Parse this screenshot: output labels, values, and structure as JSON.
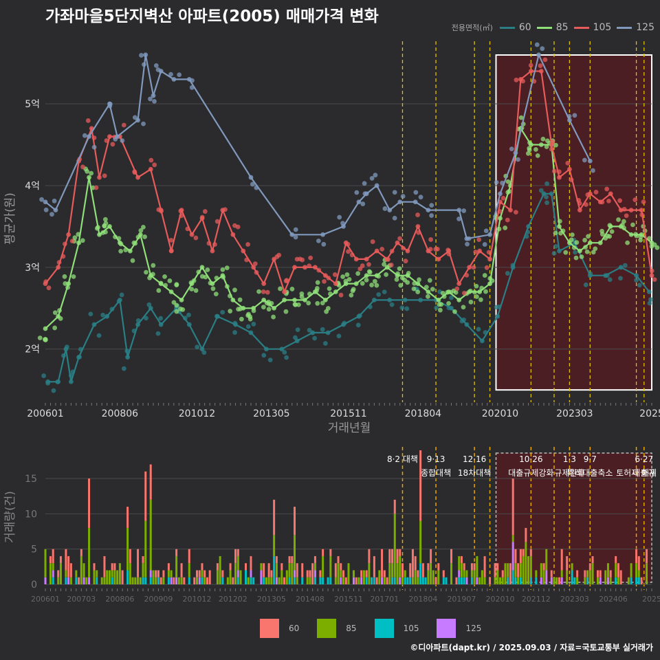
{
  "title": "가좌마을5단지벽산 아파트(2005) 매매가격 변화",
  "credit": "©디아파트(dapt.kr) / 2025.09.03 / 자료=국토교통부 실거래가",
  "legend": {
    "title": "전용면적(㎡)",
    "items": [
      {
        "label": "60",
        "color": "#2a7f86"
      },
      {
        "label": "85",
        "color": "#90e07a"
      },
      {
        "label": "105",
        "color": "#e85b5b"
      },
      {
        "label": "125",
        "color": "#8099bd"
      }
    ]
  },
  "bar_legend": {
    "items": [
      {
        "label": "60",
        "color": "#f8766d"
      },
      {
        "label": "85",
        "color": "#7cae00"
      },
      {
        "label": "105",
        "color": "#00bfc4"
      },
      {
        "label": "125",
        "color": "#c77cff"
      }
    ]
  },
  "chart_data": [
    {
      "type": "line",
      "xlabel": "거래년월",
      "ylabel": "평균가(원)",
      "x_ticks": [
        "200601",
        "200806",
        "201012",
        "201305",
        "201511",
        "201804",
        "202010",
        "202303",
        "2025"
      ],
      "y_ticks": [
        "2억",
        "3억",
        "4억",
        "5억"
      ],
      "ylim": [
        1.35,
        5.85
      ],
      "xlim": [
        "2006-01",
        "2025-09"
      ],
      "grid": true,
      "legend_position": "top-right",
      "series": [
        {
          "name": "60",
          "points": [
            [
              "2006-02",
              1.6
            ],
            [
              "2006-06",
              1.6
            ],
            [
              "2006-09",
              2.0
            ],
            [
              "2006-11",
              1.6
            ],
            [
              "2007-02",
              1.9
            ],
            [
              "2007-08",
              2.3
            ],
            [
              "2008-01",
              2.4
            ],
            [
              "2008-06",
              2.6
            ],
            [
              "2008-09",
              1.9
            ],
            [
              "2009-01",
              2.3
            ],
            [
              "2009-06",
              2.5
            ],
            [
              "2009-10",
              2.3
            ],
            [
              "2010-04",
              2.5
            ],
            [
              "2010-09",
              2.3
            ],
            [
              "2011-02",
              2.0
            ],
            [
              "2011-08",
              2.4
            ],
            [
              "2012-03",
              2.3
            ],
            [
              "2012-09",
              2.2
            ],
            [
              "2013-03",
              2.0
            ],
            [
              "2013-09",
              2.0
            ],
            [
              "2014-03",
              2.1
            ],
            [
              "2014-09",
              2.2
            ],
            [
              "2015-03",
              2.2
            ],
            [
              "2015-09",
              2.3
            ],
            [
              "2016-03",
              2.4
            ],
            [
              "2016-09",
              2.6
            ],
            [
              "2017-03",
              2.6
            ],
            [
              "2017-09",
              2.6
            ],
            [
              "2018-03",
              2.6
            ],
            [
              "2018-09",
              2.6
            ],
            [
              "2019-03",
              2.5
            ],
            [
              "2019-09",
              2.3
            ],
            [
              "2020-03",
              2.1
            ],
            [
              "2020-09",
              2.4
            ],
            [
              "2021-03",
              3.0
            ],
            [
              "2021-09",
              3.5
            ],
            [
              "2022-03",
              3.9
            ],
            [
              "2022-06",
              3.9
            ],
            [
              "2022-09",
              3.2
            ],
            [
              "2023-03",
              3.3
            ],
            [
              "2023-09",
              2.9
            ],
            [
              "2024-03",
              2.9
            ],
            [
              "2024-09",
              3.0
            ],
            [
              "2025-03",
              2.9
            ],
            [
              "2025-08",
              2.7
            ]
          ]
        },
        {
          "name": "85",
          "points": [
            [
              "2006-01",
              2.25
            ],
            [
              "2006-06",
              2.4
            ],
            [
              "2006-10",
              2.8
            ],
            [
              "2007-02",
              3.3
            ],
            [
              "2007-06",
              4.1
            ],
            [
              "2007-10",
              3.4
            ],
            [
              "2008-02",
              3.5
            ],
            [
              "2008-06",
              3.3
            ],
            [
              "2008-10",
              3.2
            ],
            [
              "2009-02",
              3.4
            ],
            [
              "2009-06",
              2.9
            ],
            [
              "2009-10",
              2.8
            ],
            [
              "2010-02",
              2.7
            ],
            [
              "2010-06",
              2.6
            ],
            [
              "2010-10",
              2.8
            ],
            [
              "2011-02",
              3.0
            ],
            [
              "2011-06",
              2.8
            ],
            [
              "2011-10",
              2.9
            ],
            [
              "2012-02",
              2.6
            ],
            [
              "2012-06",
              2.5
            ],
            [
              "2012-10",
              2.5
            ],
            [
              "2013-02",
              2.6
            ],
            [
              "2013-06",
              2.5
            ],
            [
              "2013-10",
              2.6
            ],
            [
              "2014-02",
              2.6
            ],
            [
              "2014-06",
              2.6
            ],
            [
              "2014-10",
              2.7
            ],
            [
              "2015-02",
              2.6
            ],
            [
              "2015-06",
              2.7
            ],
            [
              "2015-10",
              2.8
            ],
            [
              "2016-02",
              2.8
            ],
            [
              "2016-06",
              2.9
            ],
            [
              "2016-10",
              2.9
            ],
            [
              "2017-02",
              3.0
            ],
            [
              "2017-06",
              2.9
            ],
            [
              "2017-10",
              2.9
            ],
            [
              "2018-02",
              2.8
            ],
            [
              "2018-06",
              2.7
            ],
            [
              "2018-10",
              2.6
            ],
            [
              "2019-02",
              2.7
            ],
            [
              "2019-06",
              2.6
            ],
            [
              "2019-10",
              2.7
            ],
            [
              "2020-02",
              2.7
            ],
            [
              "2020-06",
              2.8
            ],
            [
              "2020-10",
              3.6
            ],
            [
              "2021-02",
              4.0
            ],
            [
              "2021-06",
              4.7
            ],
            [
              "2021-10",
              4.5
            ],
            [
              "2022-02",
              4.5
            ],
            [
              "2022-06",
              4.5
            ],
            [
              "2022-09",
              3.5
            ],
            [
              "2023-01",
              3.3
            ],
            [
              "2023-05",
              3.2
            ],
            [
              "2023-09",
              3.3
            ],
            [
              "2024-01",
              3.3
            ],
            [
              "2024-05",
              3.5
            ],
            [
              "2024-09",
              3.5
            ],
            [
              "2025-01",
              3.4
            ],
            [
              "2025-05",
              3.4
            ],
            [
              "2025-09",
              3.3
            ]
          ]
        },
        {
          "name": "105",
          "points": [
            [
              "2006-01",
              2.8
            ],
            [
              "2006-06",
              3.0
            ],
            [
              "2006-10",
              3.4
            ],
            [
              "2007-02",
              4.3
            ],
            [
              "2007-07",
              4.7
            ],
            [
              "2007-10",
              4.1
            ],
            [
              "2008-02",
              4.6
            ],
            [
              "2008-06",
              4.6
            ],
            [
              "2009-01",
              4.1
            ],
            [
              "2009-06",
              4.2
            ],
            [
              "2009-10",
              3.7
            ],
            [
              "2010-02",
              3.2
            ],
            [
              "2010-06",
              3.7
            ],
            [
              "2010-10",
              3.4
            ],
            [
              "2011-02",
              3.6
            ],
            [
              "2011-06",
              3.2
            ],
            [
              "2011-10",
              3.7
            ],
            [
              "2012-02",
              3.4
            ],
            [
              "2012-06",
              3.2
            ],
            [
              "2012-10",
              3.0
            ],
            [
              "2013-02",
              2.8
            ],
            [
              "2013-06",
              3.1
            ],
            [
              "2013-10",
              2.7
            ],
            [
              "2014-02",
              3.0
            ],
            [
              "2014-06",
              3.0
            ],
            [
              "2014-10",
              3.0
            ],
            [
              "2015-02",
              2.9
            ],
            [
              "2015-06",
              2.8
            ],
            [
              "2015-10",
              3.3
            ],
            [
              "2016-02",
              3.1
            ],
            [
              "2016-06",
              3.1
            ],
            [
              "2016-10",
              3.2
            ],
            [
              "2017-02",
              3.1
            ],
            [
              "2017-06",
              3.3
            ],
            [
              "2017-10",
              3.2
            ],
            [
              "2018-02",
              3.5
            ],
            [
              "2018-06",
              3.2
            ],
            [
              "2018-10",
              3.1
            ],
            [
              "2019-02",
              3.2
            ],
            [
              "2019-06",
              2.8
            ],
            [
              "2019-10",
              3.0
            ],
            [
              "2020-02",
              3.2
            ],
            [
              "2020-06",
              3.1
            ],
            [
              "2020-10",
              3.8
            ],
            [
              "2021-02",
              3.7
            ],
            [
              "2021-06",
              5.3
            ],
            [
              "2021-10",
              5.4
            ],
            [
              "2022-02",
              5.4
            ],
            [
              "2022-06",
              4.5
            ],
            [
              "2022-09",
              4.1
            ],
            [
              "2023-01",
              4.2
            ],
            [
              "2023-05",
              3.7
            ],
            [
              "2023-09",
              3.9
            ],
            [
              "2024-01",
              3.8
            ],
            [
              "2024-05",
              3.9
            ],
            [
              "2024-09",
              3.7
            ],
            [
              "2025-01",
              3.7
            ],
            [
              "2025-05",
              3.7
            ],
            [
              "2025-09",
              2.9
            ]
          ]
        },
        {
          "name": "125",
          "points": [
            [
              "2006-01",
              3.8
            ],
            [
              "2006-05",
              3.7
            ],
            [
              "2007-06",
              4.6
            ],
            [
              "2008-02",
              5.0
            ],
            [
              "2008-05",
              4.6
            ],
            [
              "2009-01",
              4.8
            ],
            [
              "2009-04",
              5.6
            ],
            [
              "2009-07",
              5.1
            ],
            [
              "2009-10",
              5.4
            ],
            [
              "2010-03",
              5.3
            ],
            [
              "2010-09",
              5.3
            ],
            [
              "2012-09",
              4.1
            ],
            [
              "2014-01",
              3.4
            ],
            [
              "2015-01",
              3.4
            ],
            [
              "2015-09",
              3.5
            ],
            [
              "2016-03",
              3.8
            ],
            [
              "2016-06",
              3.9
            ],
            [
              "2016-10",
              4.0
            ],
            [
              "2017-03",
              3.7
            ],
            [
              "2017-07",
              3.8
            ],
            [
              "2018-01",
              3.8
            ],
            [
              "2018-06",
              3.7
            ],
            [
              "2019-06",
              3.7
            ],
            [
              "2019-09",
              3.35
            ],
            [
              "2020-06",
              3.4
            ],
            [
              "2020-10",
              3.9
            ],
            [
              "2021-04",
              4.4
            ],
            [
              "2022-01",
              5.6
            ],
            [
              "2023-01",
              4.8
            ],
            [
              "2023-09",
              4.3
            ]
          ]
        }
      ]
    },
    {
      "type": "bar",
      "stacked": true,
      "ylabel": "거래량(건)",
      "x_ticks": [
        "200601",
        "200703",
        "200806",
        "200909",
        "201012",
        "201202",
        "201305",
        "201408",
        "201511",
        "201701",
        "201804",
        "201907",
        "202010",
        "202112",
        "202303",
        "202406",
        "2025"
      ],
      "y_ticks": [
        0,
        5,
        10,
        15
      ],
      "ylim": [
        0,
        19
      ],
      "series": [
        {
          "name": "60",
          "monthly_estimate": true
        },
        {
          "name": "85",
          "monthly_estimate": true
        },
        {
          "name": "105",
          "monthly_estimate": true
        },
        {
          "name": "125",
          "monthly_estimate": true
        }
      ],
      "peaks": [
        [
          "2007-06",
          15
        ],
        [
          "2008-09",
          11
        ],
        [
          "2009-04",
          16
        ],
        [
          "2009-06",
          17
        ],
        [
          "2013-06",
          12
        ],
        [
          "2014-02",
          11
        ],
        [
          "2017-05",
          12
        ],
        [
          "2018-03",
          19
        ],
        [
          "2021-03",
          15
        ],
        [
          "2021-08",
          8
        ]
      ],
      "grid": true
    }
  ],
  "policy_events": [
    {
      "date": "2017-08",
      "label": "8·2 대책",
      "line_color": "#e3c100"
    },
    {
      "date": "2018-09",
      "label": "9·13",
      "sub": "종합대책",
      "line_color": "#e3c100"
    },
    {
      "date": "2019-12",
      "label": "12·16",
      "sub": "18차대책",
      "line_color": "#e3c100"
    },
    {
      "date": "2020-06",
      "label": "",
      "line_color": "#e3c100"
    },
    {
      "date": "2021-10",
      "label": "10·26",
      "sub": "대출규제강화",
      "line_color": "#e3c100"
    },
    {
      "date": "2022-07",
      "label": "",
      "line_color": "#e3c100"
    },
    {
      "date": "2023-01",
      "label": "1·3",
      "sub": "규제완화",
      "line_color": "#e3c100"
    },
    {
      "date": "2023-09",
      "label": "9·7",
      "sub": "특례대출축소",
      "line_color": "#e3c100"
    },
    {
      "date": "2025-03",
      "label": "",
      "sub": "토허제 해제",
      "line_color": "#e3c100"
    },
    {
      "date": "2025-06",
      "label": "6·27",
      "sub": "대출규",
      "line_color": "#e3c100"
    }
  ],
  "highlight_range": {
    "start": "2020-10",
    "end": "2025-09"
  }
}
